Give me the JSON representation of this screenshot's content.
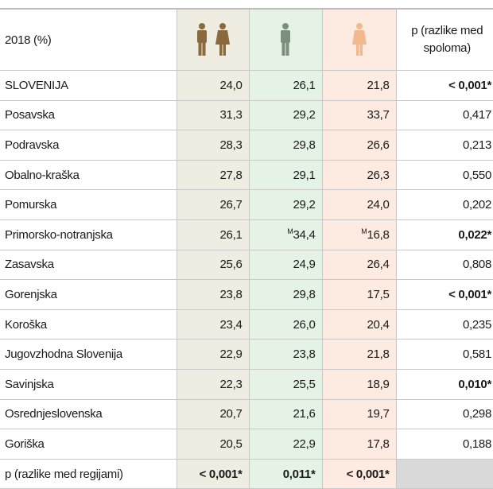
{
  "table": {
    "header": {
      "label": "2018 (%)",
      "p": "p (razlike med spoloma)"
    },
    "rows": [
      {
        "region": "SLOVENIJA",
        "total": "24,0",
        "male": "26,1",
        "female": "21,8",
        "p": "< 0,001*"
      },
      {
        "region": "Posavska",
        "total": "31,3",
        "male": "29,2",
        "female": "33,7",
        "p": "0,417"
      },
      {
        "region": "Podravska",
        "total": "28,3",
        "male": "29,8",
        "female": "26,6",
        "p": "0,213"
      },
      {
        "region": "Obalno-kraška",
        "total": "27,8",
        "male": "29,1",
        "female": "26,3",
        "p": "0,550"
      },
      {
        "region": "Pomurska",
        "total": "26,7",
        "male": "29,2",
        "female": "24,0",
        "p": "0,202"
      },
      {
        "region": "Primorsko-notranjska",
        "total": "26,1",
        "male": {
          "flag": "M",
          "value": "34,4"
        },
        "female": {
          "flag": "M",
          "value": "16,8"
        },
        "p": "0,022*"
      },
      {
        "region": "Zasavska",
        "total": "25,6",
        "male": "24,9",
        "female": "26,4",
        "p": "0,808"
      },
      {
        "region": "Gorenjska",
        "total": "23,8",
        "male": "29,8",
        "female": "17,5",
        "p": "< 0,001*"
      },
      {
        "region": "Koroška",
        "total": "23,4",
        "male": "26,0",
        "female": "20,4",
        "p": "0,235"
      },
      {
        "region": "Jugovzhodna Slovenija",
        "total": "22,9",
        "male": "23,8",
        "female": "21,8",
        "p": "0,581"
      },
      {
        "region": "Savinjska",
        "total": "22,3",
        "male": "25,5",
        "female": "18,9",
        "p": "0,010*"
      },
      {
        "region": "Osrednjeslovenska",
        "total": "20,7",
        "male": "21,6",
        "female": "19,7",
        "p": "0,298"
      },
      {
        "region": "Goriška",
        "total": "20,5",
        "male": "22,9",
        "female": "17,8",
        "p": "0,188"
      }
    ],
    "footer": {
      "label": "p (razlike med regijami)",
      "total": "< 0,001*",
      "male": "0,011*",
      "female": "< 0,001*"
    }
  }
}
